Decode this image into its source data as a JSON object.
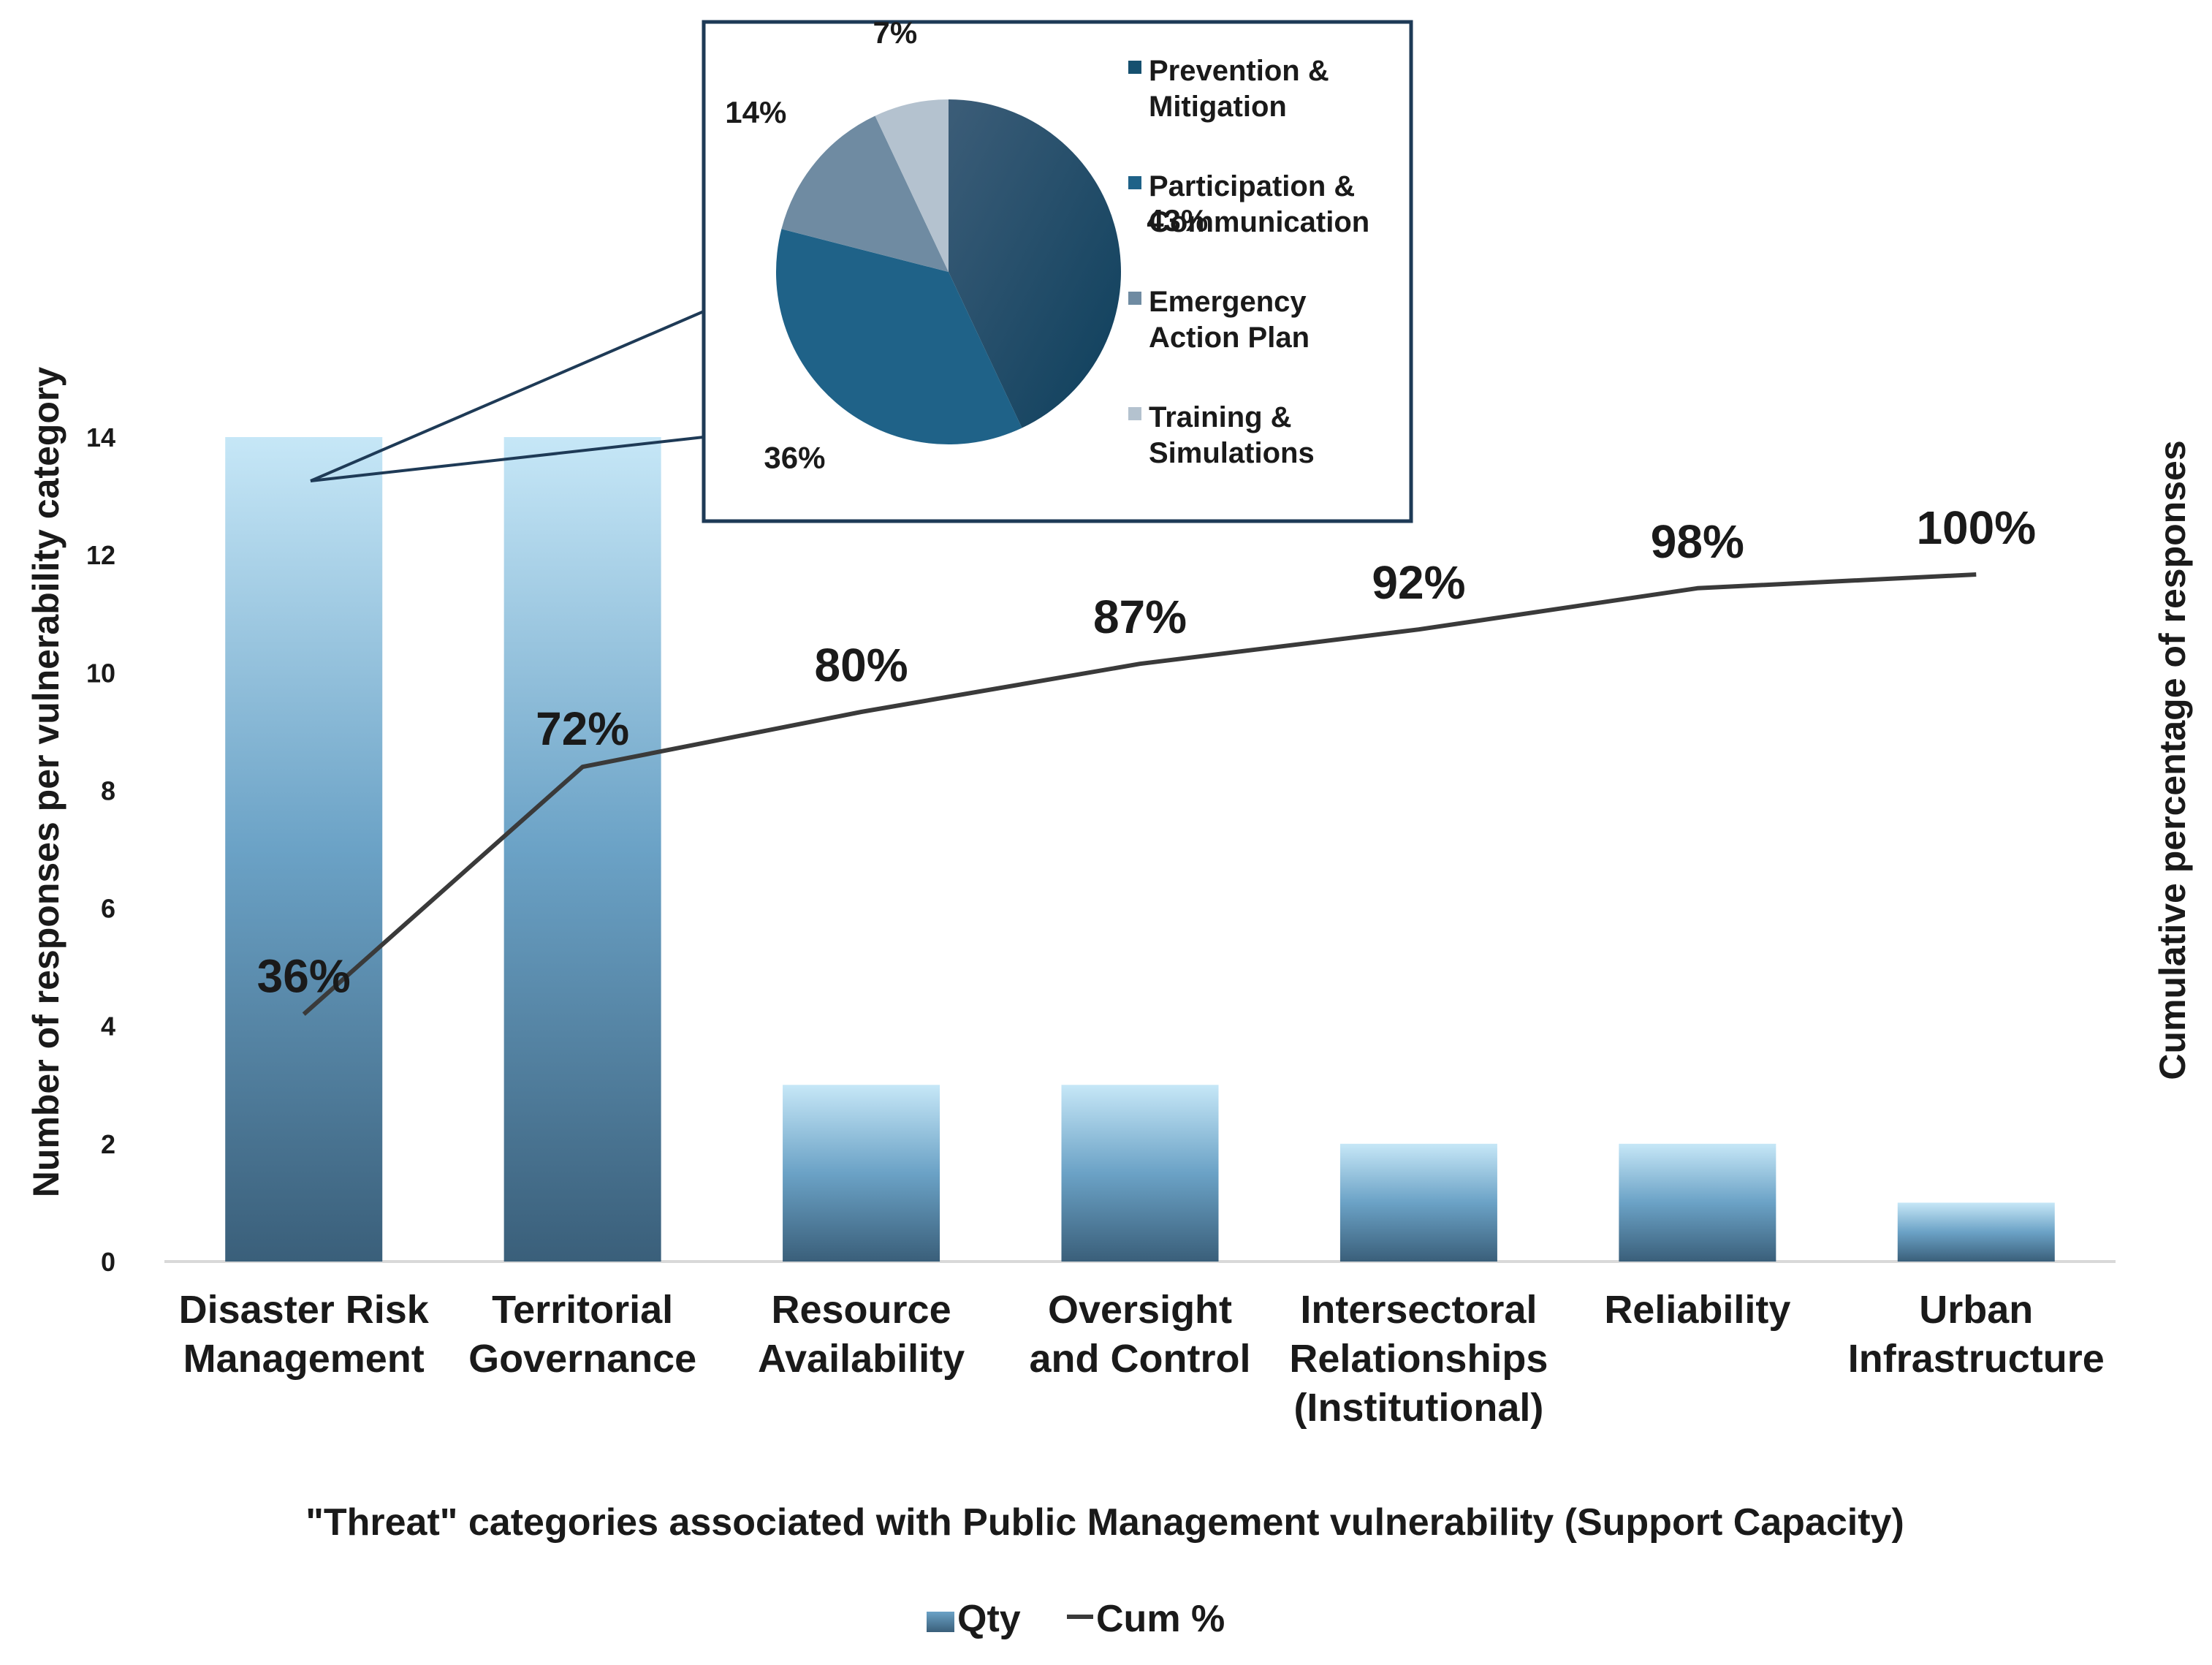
{
  "chart_data": [
    {
      "type": "bar",
      "title": "",
      "categories": [
        [
          "Disaster Risk",
          "Management"
        ],
        [
          "Territorial",
          "Governance"
        ],
        [
          "Resource",
          "Availability"
        ],
        [
          "Oversight",
          "and Control"
        ],
        [
          "Intersectoral",
          "Relationships",
          "(Institutional)"
        ],
        [
          "Reliability"
        ],
        [
          "Urban",
          "Infrastructure"
        ]
      ],
      "series": [
        {
          "name": "Qty",
          "type": "bar",
          "values": [
            14,
            14,
            3,
            3,
            2,
            2,
            1
          ]
        },
        {
          "name": "Cum %",
          "type": "line",
          "axis": "secondary",
          "values": [
            36,
            72,
            80,
            87,
            92,
            98,
            100
          ],
          "labels": [
            "36%",
            "72%",
            "80%",
            "87%",
            "92%",
            "98%",
            "100%"
          ]
        }
      ],
      "xlabel": "\"Threat\" categories associated with Public Management vulnerability (Support Capacity)",
      "ylabel": "Number of responses per vulnerability category",
      "y2label": "Cumulative percentage of responses",
      "ylim": [
        0,
        14
      ],
      "yticks": [
        "0",
        "2",
        "4",
        "6",
        "8",
        "10",
        "12",
        "14"
      ],
      "legend": [
        "Qty",
        "Cum %"
      ],
      "legend_position": "bottom"
    },
    {
      "type": "pie",
      "title": "",
      "detail_of": "Disaster Risk Management",
      "slices": [
        {
          "name": "Prevention & Mitigation",
          "legend_lines": [
            "Prevention &",
            "Mitigation"
          ],
          "value": 43,
          "label": "43%",
          "color": "#16506f"
        },
        {
          "name": "Participation & Communication",
          "legend_lines": [
            "Participation &",
            "Communication"
          ],
          "value": 36,
          "label": "36%",
          "color": "#1f6288"
        },
        {
          "name": "Emergency Action Plan",
          "legend_lines": [
            "Emergency",
            "Action Plan"
          ],
          "value": 14,
          "label": "14%",
          "color": "#6f8ba2"
        },
        {
          "name": "Training & Simulations",
          "legend_lines": [
            "Training &",
            "Simulations"
          ],
          "value": 7,
          "label": "7%",
          "color": "#b4c2cf"
        }
      ]
    }
  ],
  "colors": {
    "bar_top": "#c6e7f7",
    "bar_mid": "#6ba2c6",
    "bar_bottom": "#3a5f7a",
    "line": "#3a3a3a",
    "axis": "#d9d9d9",
    "inset_border": "#1e3a56"
  }
}
